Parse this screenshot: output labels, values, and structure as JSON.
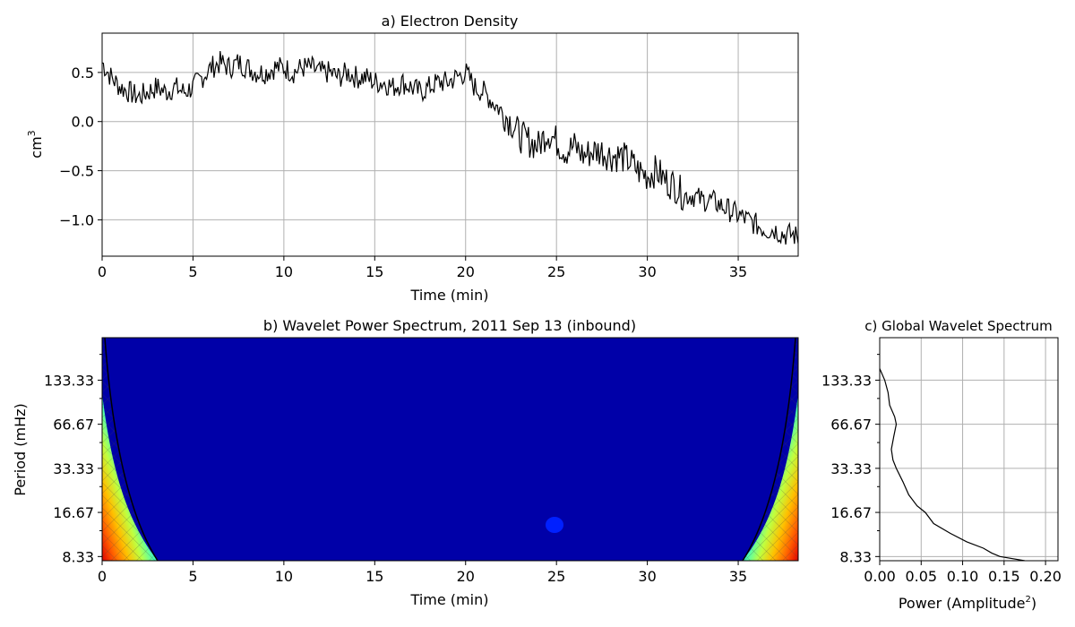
{
  "chart_data": [
    {
      "type": "line",
      "panel": "a",
      "title": "a) Electron Density",
      "xlabel": "Time (min)",
      "ylabel_base": "cm",
      "ylabel_sup": "3",
      "xlim": [
        0,
        38.3
      ],
      "ylim": [
        -1.37,
        0.9
      ],
      "x_ticks": [
        0,
        5,
        10,
        15,
        20,
        25,
        30,
        35
      ],
      "x_tick_labels": [
        "0",
        "5",
        "10",
        "15",
        "20",
        "25",
        "30",
        "35"
      ],
      "y_ticks": [
        0.5,
        0.0,
        -0.5,
        -1.0
      ],
      "y_tick_labels": [
        "0.5",
        "0.0",
        "−0.5",
        "−1.0"
      ],
      "grid": true,
      "line_color": "#000000",
      "series": [
        {
          "x": [
            0,
            0.5,
            1,
            1.5,
            2,
            2.5,
            3,
            3.5,
            4,
            4.5,
            5,
            5.5,
            6,
            6.5,
            7,
            7.5,
            8,
            8.5,
            9,
            9.5,
            10,
            10.5,
            11,
            11.5,
            12,
            12.5,
            13,
            13.5,
            14,
            14.5,
            15,
            15.5,
            16,
            16.5,
            17,
            17.5,
            18,
            18.5,
            19,
            19.5,
            20,
            20.5,
            21,
            21.5,
            22,
            22.5,
            23,
            23.5,
            24,
            24.5,
            25,
            25.5,
            26,
            26.5,
            27,
            27.5,
            28,
            28.5,
            29,
            29.5,
            30,
            30.5,
            31,
            31.5,
            32,
            32.5,
            33,
            33.5,
            34,
            34.5,
            35,
            35.5,
            36,
            36.5,
            37,
            37.5,
            38,
            38.3
          ],
          "y": [
            0.6,
            0.45,
            0.35,
            0.3,
            0.25,
            0.3,
            0.35,
            0.3,
            0.35,
            0.3,
            0.35,
            0.45,
            0.55,
            0.6,
            0.55,
            0.6,
            0.55,
            0.5,
            0.5,
            0.55,
            0.55,
            0.5,
            0.55,
            0.55,
            0.5,
            0.5,
            0.45,
            0.5,
            0.45,
            0.45,
            0.4,
            0.4,
            0.35,
            0.4,
            0.35,
            0.3,
            0.35,
            0.4,
            0.4,
            0.45,
            0.5,
            0.35,
            0.3,
            0.2,
            0.1,
            0.0,
            -0.15,
            -0.2,
            -0.25,
            -0.1,
            -0.2,
            -0.3,
            -0.25,
            -0.35,
            -0.3,
            -0.3,
            -0.35,
            -0.35,
            -0.4,
            -0.5,
            -0.55,
            -0.5,
            -0.6,
            -0.65,
            -0.75,
            -0.75,
            -0.8,
            -0.8,
            -0.85,
            -0.9,
            -0.95,
            -1.0,
            -1.05,
            -1.1,
            -1.1,
            -1.15,
            -1.15,
            -1.18
          ]
        }
      ]
    },
    {
      "type": "heatmap",
      "panel": "b",
      "title": "b) Wavelet Power Spectrum, 2011 Sep 13 (inbound)",
      "xlabel": "Time (min)",
      "ylabel": "Period (mHz)",
      "xlim": [
        0,
        38.3
      ],
      "x_ticks": [
        0,
        5,
        10,
        15,
        20,
        25,
        30,
        35
      ],
      "x_tick_labels": [
        "0",
        "5",
        "10",
        "15",
        "20",
        "25",
        "30",
        "35"
      ],
      "y_tick_labels": [
        "133.33",
        "66.67",
        "33.33",
        "16.67",
        "8.33"
      ],
      "log_scale_y": true,
      "background_level": "low",
      "colormap": [
        "#00009f",
        "#0000ff",
        "#0060ff",
        "#00c0ff",
        "#40ffbf",
        "#bfff40",
        "#ffc000",
        "#ff6000",
        "#e00000"
      ],
      "features": [
        {
          "label": "edge power, left",
          "x_min": 0,
          "x_max": 3,
          "period_max": 66.67
        },
        {
          "label": "edge power, right",
          "x_min": 35,
          "x_max": 38.3,
          "period_max": 66.67
        },
        {
          "label": "local peak",
          "x": 24.9,
          "period": 11.0
        }
      ],
      "cone_of_influence": true
    },
    {
      "type": "line",
      "panel": "c",
      "title": "c) Global Wavelet Spectrum",
      "xlabel_base": "Power (Amplitude",
      "xlabel_sup": "2",
      "xlabel_end": ")",
      "xlim": [
        0,
        0.215
      ],
      "x_ticks": [
        0,
        0.05,
        0.1,
        0.15,
        0.2
      ],
      "x_tick_labels": [
        "0.00",
        "0.05",
        "0.10",
        "0.15",
        "0.20"
      ],
      "y_tick_labels": [
        "133.33",
        "66.67",
        "33.33",
        "16.67",
        "8.33"
      ],
      "grid": true,
      "series": [
        {
          "period_mHz": [
            160,
            133.33,
            110,
            90,
            75,
            66.67,
            55,
            45,
            38,
            33.33,
            27,
            22,
            18.5,
            16.67,
            14,
            12,
            10.5,
            9.5,
            8.8,
            8.33,
            7.8
          ],
          "power": [
            0.0,
            0.006,
            0.01,
            0.012,
            0.018,
            0.02,
            0.017,
            0.014,
            0.016,
            0.02,
            0.028,
            0.035,
            0.045,
            0.055,
            0.065,
            0.085,
            0.105,
            0.125,
            0.135,
            0.145,
            0.175
          ]
        }
      ]
    }
  ]
}
